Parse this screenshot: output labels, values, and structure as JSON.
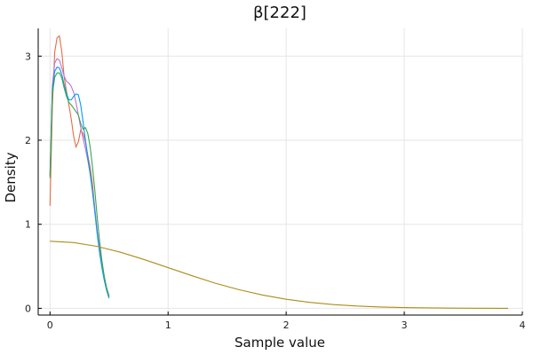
{
  "chart_data": {
    "type": "line",
    "title": "β[222]",
    "xlabel": "Sample value",
    "ylabel": "Density",
    "xlim": [
      -0.1,
      4.0
    ],
    "ylim": [
      -0.08,
      3.33
    ],
    "xticks": [
      0,
      1,
      2,
      3,
      4
    ],
    "yticks": [
      0,
      1,
      2,
      3
    ],
    "grid": true,
    "legend": "none",
    "series": [
      {
        "color": "#e26f46",
        "x": [
          0.0,
          0.02,
          0.04,
          0.06,
          0.08,
          0.1,
          0.12,
          0.14,
          0.16,
          0.18,
          0.2,
          0.22,
          0.24,
          0.26,
          0.28,
          0.3,
          0.32,
          0.34,
          0.36,
          0.38,
          0.4,
          0.42,
          0.44,
          0.46,
          0.48,
          0.5
        ],
        "y": [
          1.22,
          2.4,
          3.05,
          3.22,
          3.24,
          3.05,
          2.75,
          2.58,
          2.42,
          2.25,
          2.05,
          1.92,
          1.98,
          2.12,
          2.08,
          1.98,
          1.82,
          1.68,
          1.48,
          1.18,
          0.9,
          0.7,
          0.5,
          0.34,
          0.22,
          0.13
        ]
      },
      {
        "color": "#c271d2",
        "x": [
          0.0,
          0.02,
          0.04,
          0.06,
          0.08,
          0.1,
          0.12,
          0.14,
          0.16,
          0.18,
          0.2,
          0.22,
          0.24,
          0.26,
          0.28,
          0.3,
          0.32,
          0.34,
          0.36,
          0.38,
          0.4,
          0.42,
          0.44,
          0.46,
          0.48,
          0.5
        ],
        "y": [
          1.58,
          2.65,
          2.92,
          2.97,
          2.95,
          2.86,
          2.76,
          2.7,
          2.68,
          2.64,
          2.57,
          2.45,
          2.3,
          2.15,
          2.02,
          1.9,
          1.76,
          1.6,
          1.4,
          1.18,
          0.92,
          0.7,
          0.52,
          0.36,
          0.24,
          0.15
        ]
      },
      {
        "color": "#009af9",
        "x": [
          0.0,
          0.02,
          0.04,
          0.06,
          0.08,
          0.1,
          0.12,
          0.14,
          0.16,
          0.18,
          0.2,
          0.22,
          0.24,
          0.26,
          0.28,
          0.3,
          0.32,
          0.34,
          0.36,
          0.38,
          0.4,
          0.42,
          0.44,
          0.46,
          0.48,
          0.5
        ],
        "y": [
          1.58,
          2.6,
          2.82,
          2.87,
          2.86,
          2.78,
          2.66,
          2.55,
          2.48,
          2.48,
          2.52,
          2.55,
          2.54,
          2.42,
          2.22,
          2.0,
          1.8,
          1.6,
          1.38,
          1.14,
          0.88,
          0.66,
          0.48,
          0.33,
          0.21,
          0.12
        ]
      },
      {
        "color": "#3da44d",
        "x": [
          0.0,
          0.02,
          0.04,
          0.06,
          0.08,
          0.1,
          0.12,
          0.14,
          0.16,
          0.18,
          0.2,
          0.22,
          0.24,
          0.26,
          0.28,
          0.3,
          0.32,
          0.34,
          0.36,
          0.38,
          0.4,
          0.42,
          0.44,
          0.46,
          0.48,
          0.5
        ],
        "y": [
          1.55,
          2.55,
          2.75,
          2.8,
          2.8,
          2.74,
          2.62,
          2.52,
          2.45,
          2.42,
          2.38,
          2.34,
          2.3,
          2.2,
          2.13,
          2.15,
          2.08,
          1.92,
          1.68,
          1.4,
          1.08,
          0.8,
          0.56,
          0.38,
          0.24,
          0.14
        ]
      },
      {
        "color": "#ac8d18",
        "x": [
          0.0,
          0.2,
          0.4,
          0.6,
          0.8,
          1.0,
          1.2,
          1.4,
          1.6,
          1.8,
          2.0,
          2.2,
          2.4,
          2.6,
          2.8,
          3.0,
          3.2,
          3.4,
          3.6,
          3.88
        ],
        "y": [
          0.798,
          0.782,
          0.737,
          0.666,
          0.579,
          0.484,
          0.389,
          0.299,
          0.222,
          0.158,
          0.108,
          0.071,
          0.045,
          0.027,
          0.016,
          0.009,
          0.005,
          0.002,
          0.001,
          0.0
        ]
      }
    ]
  }
}
